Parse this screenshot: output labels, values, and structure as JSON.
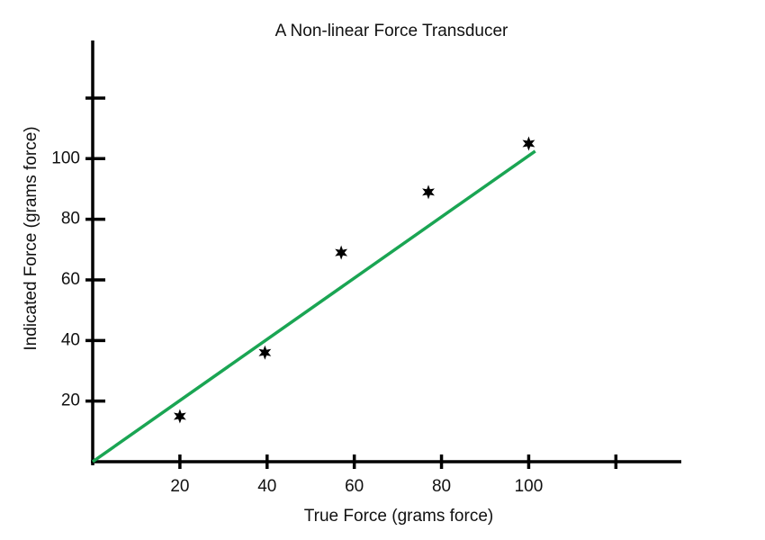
{
  "chart_data": {
    "type": "scatter",
    "title": "A Non-linear Force Transducer",
    "x_label": "True Force (grams force)",
    "y_label": "Indicated Force (grams force)",
    "points": {
      "x": [
        20,
        39.5,
        57,
        77,
        100
      ],
      "y": [
        15,
        36,
        69,
        89,
        105
      ],
      "color": "#000000"
    },
    "fit_line": {
      "x": [
        0,
        101.5
      ],
      "y": [
        0,
        102.5
      ],
      "color": "#1aa553"
    },
    "xlim": [
      0,
      135
    ],
    "ylim": [
      0,
      139
    ],
    "xticks": [
      20,
      40,
      60,
      80,
      100,
      {
        "value": 120,
        "label": null
      }
    ],
    "yticks": [
      20,
      40,
      60,
      80,
      100,
      {
        "value": 120,
        "label": null
      }
    ],
    "grid": false
  }
}
